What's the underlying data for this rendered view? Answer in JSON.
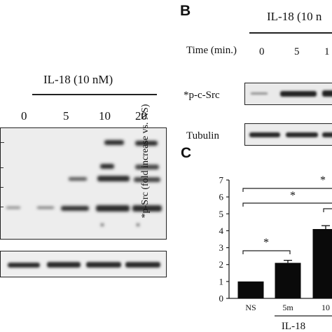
{
  "panel_a": {
    "treatment": "IL-18 (10 nM)",
    "lanes": [
      "0",
      "5",
      "10",
      "20"
    ]
  },
  "panel_b": {
    "letter": "B",
    "treatment": "IL-18 (10 n",
    "time_label": "Time (min.)",
    "lanes": [
      "0",
      "5",
      "1"
    ],
    "row1_label": "*p-c-Src",
    "row2_label": "Tubulin"
  },
  "panel_c": {
    "letter": "C",
    "ylabel": "*p-Src (fold increase vs. NS)",
    "yticks": [
      "0",
      "1",
      "2",
      "3",
      "4",
      "5",
      "6",
      "7"
    ],
    "xticks": [
      "NS",
      "5m",
      "10"
    ],
    "xgroup": "IL-18",
    "significance": [
      "*",
      "*",
      "*",
      "*"
    ]
  },
  "chart_data": {
    "type": "bar",
    "categories": [
      "NS",
      "5m",
      "10"
    ],
    "values": [
      1.0,
      2.1,
      4.1
    ],
    "errors": [
      0,
      0.15,
      0.2
    ],
    "ylabel": "*p-Src (fold increase vs. NS)",
    "ylim": [
      0,
      7
    ]
  }
}
